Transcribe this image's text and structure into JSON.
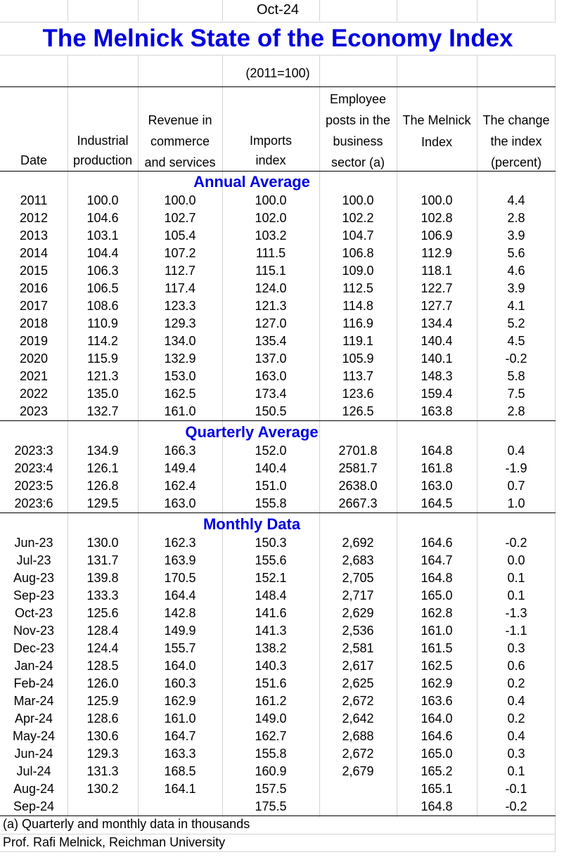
{
  "header": {
    "date_label": "Oct-24",
    "title": "The Melnick State of the Economy Index",
    "base_note": "(2011=100)"
  },
  "columns": {
    "date": [
      "Date"
    ],
    "industrial": [
      "Industrial",
      "production"
    ],
    "revenue": [
      "Revenue in",
      "commerce",
      "and services"
    ],
    "imports": [
      "Imports",
      "index"
    ],
    "employee": [
      "Employee",
      "posts in the",
      "business",
      "sector (a)"
    ],
    "melnick": [
      "The Melnick",
      "Index"
    ],
    "change": [
      "The change",
      "the index",
      "(percent)"
    ]
  },
  "sections": {
    "annual": "Annual Average",
    "quarterly": "Quarterly Average",
    "monthly": "Monthly Data"
  },
  "annual_rows": [
    [
      "2011",
      "100.0",
      "100.0",
      "100.0",
      "100.0",
      "100.0",
      "4.4"
    ],
    [
      "2012",
      "104.6",
      "102.7",
      "102.0",
      "102.2",
      "102.8",
      "2.8"
    ],
    [
      "2013",
      "103.1",
      "105.4",
      "103.2",
      "104.7",
      "106.9",
      "3.9"
    ],
    [
      "2014",
      "104.4",
      "107.2",
      "111.5",
      "106.8",
      "112.9",
      "5.6"
    ],
    [
      "2015",
      "106.3",
      "112.7",
      "115.1",
      "109.0",
      "118.1",
      "4.6"
    ],
    [
      "2016",
      "106.5",
      "117.4",
      "124.0",
      "112.5",
      "122.7",
      "3.9"
    ],
    [
      "2017",
      "108.6",
      "123.3",
      "121.3",
      "114.8",
      "127.7",
      "4.1"
    ],
    [
      "2018",
      "110.9",
      "129.3",
      "127.0",
      "116.9",
      "134.4",
      "5.2"
    ],
    [
      "2019",
      "114.2",
      "134.0",
      "135.4",
      "119.1",
      "140.4",
      "4.5"
    ],
    [
      "2020",
      "115.9",
      "132.9",
      "137.0",
      "105.9",
      "140.1",
      "-0.2"
    ],
    [
      "2021",
      "121.3",
      "153.0",
      "163.0",
      "113.7",
      "148.3",
      "5.8"
    ],
    [
      "2022",
      "135.0",
      "162.5",
      "173.4",
      "123.6",
      "159.4",
      "7.5"
    ],
    [
      "2023",
      "132.7",
      "161.0",
      "150.5",
      "126.5",
      "163.8",
      "2.8"
    ]
  ],
  "quarterly_rows": [
    [
      "2023:3",
      "134.9",
      "166.3",
      "152.0",
      "2701.8",
      "164.8",
      "0.4"
    ],
    [
      "2023:4",
      "126.1",
      "149.4",
      "140.4",
      "2581.7",
      "161.8",
      "-1.9"
    ],
    [
      "2023:5",
      "126.8",
      "162.4",
      "151.0",
      "2638.0",
      "163.0",
      "0.7"
    ],
    [
      "2023:6",
      "129.5",
      "163.0",
      "155.8",
      "2667.3",
      "164.5",
      "1.0"
    ]
  ],
  "monthly_rows": [
    [
      "Jun-23",
      "130.0",
      "162.3",
      "150.3",
      "2,692",
      "164.6",
      "-0.2"
    ],
    [
      "Jul-23",
      "131.7",
      "163.9",
      "155.6",
      "2,683",
      "164.7",
      "0.0"
    ],
    [
      "Aug-23",
      "139.8",
      "170.5",
      "152.1",
      "2,705",
      "164.8",
      "0.1"
    ],
    [
      "Sep-23",
      "133.3",
      "164.4",
      "148.4",
      "2,717",
      "165.0",
      "0.1"
    ],
    [
      "Oct-23",
      "125.6",
      "142.8",
      "141.6",
      "2,629",
      "162.8",
      "-1.3"
    ],
    [
      "Nov-23",
      "128.4",
      "149.9",
      "141.3",
      "2,536",
      "161.0",
      "-1.1"
    ],
    [
      "Dec-23",
      "124.4",
      "155.7",
      "138.2",
      "2,581",
      "161.5",
      "0.3"
    ],
    [
      "Jan-24",
      "128.5",
      "164.0",
      "140.3",
      "2,617",
      "162.5",
      "0.6"
    ],
    [
      "Feb-24",
      "126.0",
      "160.3",
      "151.6",
      "2,625",
      "162.9",
      "0.2"
    ],
    [
      "Mar-24",
      "125.9",
      "162.9",
      "161.2",
      "2,672",
      "163.6",
      "0.4"
    ],
    [
      "Apr-24",
      "128.6",
      "161.0",
      "149.0",
      "2,642",
      "164.0",
      "0.2"
    ],
    [
      "May-24",
      "130.6",
      "164.7",
      "162.7",
      "2,688",
      "164.6",
      "0.4"
    ],
    [
      "Jun-24",
      "129.3",
      "163.3",
      "155.8",
      "2,672",
      "165.0",
      "0.3"
    ],
    [
      "Jul-24",
      "131.3",
      "168.5",
      "160.9",
      "2,679",
      "165.2",
      "0.1"
    ],
    [
      "Aug-24",
      "130.2",
      "164.1",
      "157.5",
      "",
      "165.1",
      "-0.1"
    ],
    [
      "Sep-24",
      "",
      "",
      "175.5",
      "",
      "164.8",
      "-0.2"
    ]
  ],
  "footnotes": {
    "note_a": "(a) Quarterly and monthly data in thousands",
    "credit": "Prof. Rafi Melnick, Reichman University"
  },
  "colors": {
    "title": "#0000e0",
    "section": "#0000e0",
    "grid": "#d4d4d4"
  }
}
